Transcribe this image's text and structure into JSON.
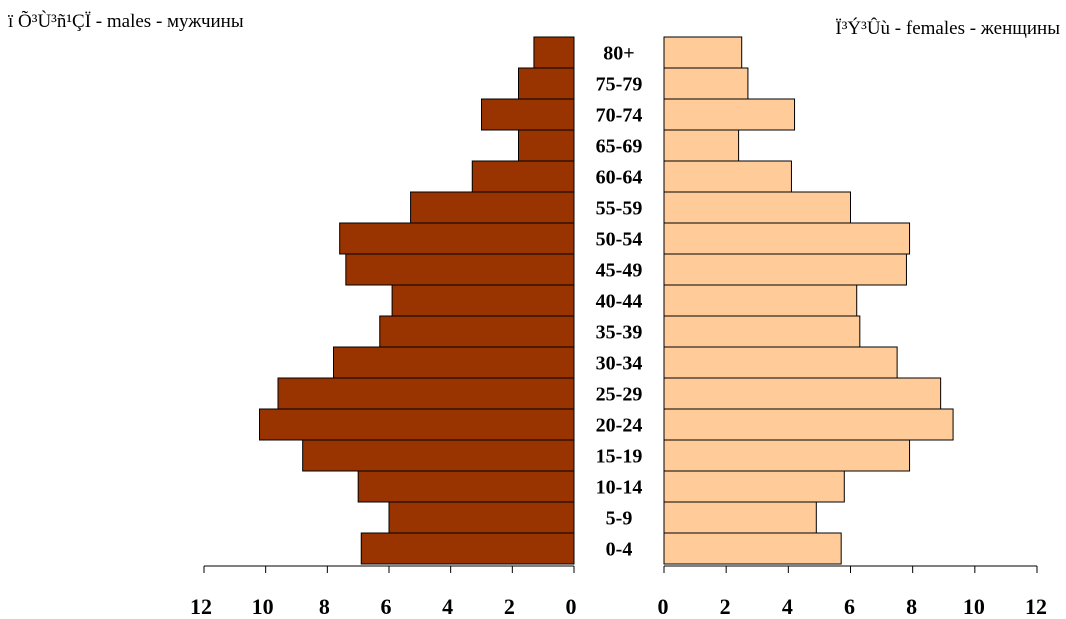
{
  "chart_data": {
    "type": "bar",
    "orientation": "horizontal",
    "layout": "population-pyramid",
    "title": "",
    "categories": [
      "0-4",
      "5-9",
      "10-14",
      "15-19",
      "20-24",
      "25-29",
      "30-34",
      "35-39",
      "40-44",
      "45-49",
      "50-54",
      "55-59",
      "60-64",
      "65-69",
      "70-74",
      "75-79",
      "80+"
    ],
    "series": [
      {
        "name": "ï Õ³Ù³ñ¹ÇÏ - males - мужчины",
        "side": "left",
        "color": "#993300",
        "values": [
          6.9,
          6.0,
          7.0,
          8.8,
          10.2,
          9.6,
          7.8,
          6.3,
          5.9,
          7.4,
          7.6,
          5.3,
          3.3,
          1.8,
          3.0,
          1.8,
          1.3
        ]
      },
      {
        "name": "Ï³Ý³Ûù - females - женщины",
        "side": "right",
        "color": "#ffcc99",
        "values": [
          5.7,
          4.9,
          5.8,
          7.9,
          9.3,
          8.9,
          7.5,
          6.3,
          6.2,
          7.8,
          7.9,
          6.0,
          4.1,
          2.4,
          4.2,
          2.7,
          2.5
        ]
      }
    ],
    "xlim": [
      0,
      12
    ],
    "xticks": [
      0,
      2,
      4,
      6,
      8,
      10,
      12
    ],
    "legend": "top"
  }
}
